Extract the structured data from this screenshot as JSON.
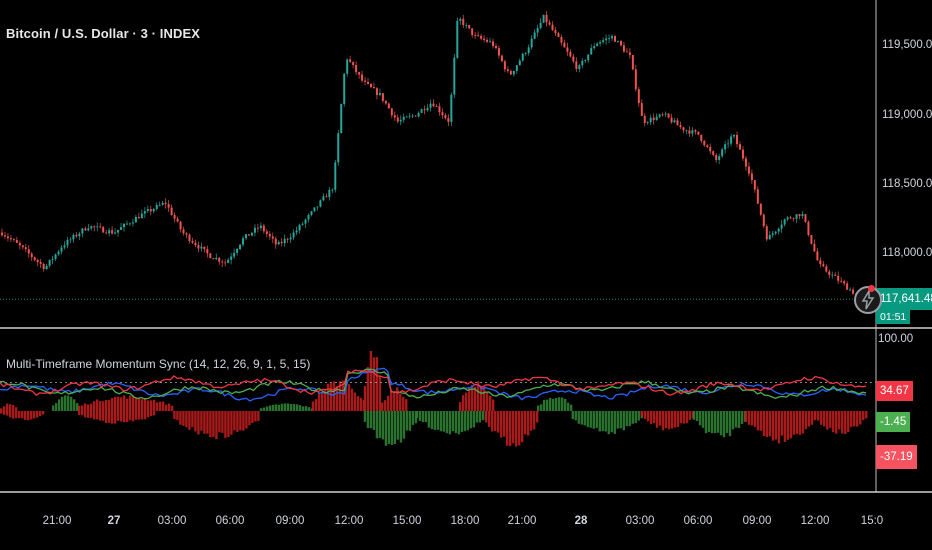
{
  "header": {
    "symbol_title": "Bitcoin / U.S. Dollar · 3 · INDEX",
    "indicator_title": "Multi-Timeframe Momentum Sync (14, 12, 26, 9, 1, 5, 15)"
  },
  "colors": {
    "background": "#000000",
    "up_candle": "#26a69a",
    "down_candle": "#ef5350",
    "rsi_blue": "#2962ff",
    "rsi_green": "#4caf50",
    "rsi_red": "#f23645",
    "hist_green": "#2e7d32",
    "hist_red": "#b71c1c",
    "hist_blue": "#1e3a8a",
    "last_price_tag": "#089981"
  },
  "price_axis": {
    "labels": [
      "119,500.00",
      "119,000.00",
      "118,500.00",
      "118,000.00"
    ],
    "last_price": "117,641.48",
    "countdown": "01:51"
  },
  "indicator_axis": {
    "top_label": "100.00",
    "tags": [
      {
        "text": "34.67",
        "color": "#f23645"
      },
      {
        "text": "-1.45",
        "color": "#4caf50"
      },
      {
        "text": "-37.19",
        "color": "#f7525f"
      }
    ]
  },
  "x_axis": {
    "labels": [
      "21:00",
      "27",
      "03:00",
      "06:00",
      "09:00",
      "12:00",
      "15:00",
      "18:00",
      "21:00",
      "28",
      "03:00",
      "06:00",
      "09:00",
      "12:00",
      "15:0"
    ]
  },
  "chart_data": [
    {
      "type": "candlestick",
      "title": "Bitcoin / U.S. Dollar · 3 · INDEX",
      "ylim": [
        117650,
        119900
      ],
      "y_ticks": [
        118000,
        118500,
        119000,
        119500
      ],
      "close_path": [
        {
          "t": 0.0,
          "v": 118150
        },
        {
          "t": 0.02,
          "v": 118050
        },
        {
          "t": 0.05,
          "v": 117880
        },
        {
          "t": 0.07,
          "v": 118050
        },
        {
          "t": 0.1,
          "v": 118200
        },
        {
          "t": 0.13,
          "v": 118150
        },
        {
          "t": 0.16,
          "v": 118280
        },
        {
          "t": 0.19,
          "v": 118380
        },
        {
          "t": 0.21,
          "v": 118150
        },
        {
          "t": 0.24,
          "v": 117980
        },
        {
          "t": 0.26,
          "v": 117920
        },
        {
          "t": 0.28,
          "v": 118100
        },
        {
          "t": 0.3,
          "v": 118200
        },
        {
          "t": 0.32,
          "v": 118050
        },
        {
          "t": 0.34,
          "v": 118150
        },
        {
          "t": 0.36,
          "v": 118300
        },
        {
          "t": 0.385,
          "v": 118500
        },
        {
          "t": 0.4,
          "v": 119500
        },
        {
          "t": 0.42,
          "v": 119300
        },
        {
          "t": 0.44,
          "v": 119200
        },
        {
          "t": 0.46,
          "v": 119000
        },
        {
          "t": 0.48,
          "v": 119050
        },
        {
          "t": 0.5,
          "v": 119150
        },
        {
          "t": 0.52,
          "v": 119000
        },
        {
          "t": 0.53,
          "v": 119800
        },
        {
          "t": 0.55,
          "v": 119650
        },
        {
          "t": 0.57,
          "v": 119600
        },
        {
          "t": 0.59,
          "v": 119350
        },
        {
          "t": 0.61,
          "v": 119550
        },
        {
          "t": 0.63,
          "v": 119800
        },
        {
          "t": 0.65,
          "v": 119600
        },
        {
          "t": 0.67,
          "v": 119400
        },
        {
          "t": 0.69,
          "v": 119600
        },
        {
          "t": 0.71,
          "v": 119650
        },
        {
          "t": 0.73,
          "v": 119500
        },
        {
          "t": 0.745,
          "v": 119000
        },
        {
          "t": 0.77,
          "v": 119050
        },
        {
          "t": 0.79,
          "v": 118950
        },
        {
          "t": 0.81,
          "v": 118900
        },
        {
          "t": 0.83,
          "v": 118700
        },
        {
          "t": 0.85,
          "v": 118900
        },
        {
          "t": 0.87,
          "v": 118600
        },
        {
          "t": 0.89,
          "v": 118100
        },
        {
          "t": 0.91,
          "v": 118250
        },
        {
          "t": 0.93,
          "v": 118300
        },
        {
          "t": 0.95,
          "v": 117900
        },
        {
          "t": 0.97,
          "v": 117800
        },
        {
          "t": 1.0,
          "v": 117641
        }
      ]
    },
    {
      "type": "line",
      "title": "Multi-Timeframe Momentum Sync (14, 12, 26, 9, 1, 5, 15)",
      "ylim": [
        -100,
        100
      ],
      "series": [
        {
          "color": "#2962ff",
          "base": 28
        },
        {
          "color": "#4caf50",
          "base": 32
        },
        {
          "color": "#f23645",
          "base": 40
        }
      ],
      "histogram_blocks": [
        {
          "t0": 0.0,
          "t1": 0.02,
          "v": 10,
          "color": "#b71c1c"
        },
        {
          "t0": 0.0,
          "t1": 0.05,
          "v": -12,
          "color": "#b71c1c"
        },
        {
          "t0": 0.06,
          "t1": 0.09,
          "v": 22,
          "color": "#2e7d32"
        },
        {
          "t0": 0.09,
          "t1": 0.2,
          "v": 20,
          "color": "#b71c1c"
        },
        {
          "t0": 0.09,
          "t1": 0.18,
          "v": -16,
          "color": "#b71c1c"
        },
        {
          "t0": 0.2,
          "t1": 0.3,
          "v": -35,
          "color": "#b71c1c"
        },
        {
          "t0": 0.3,
          "t1": 0.36,
          "v": 10,
          "color": "#2e7d32"
        },
        {
          "t0": 0.36,
          "t1": 0.42,
          "v": 40,
          "color": "#b71c1c"
        },
        {
          "t0": 0.42,
          "t1": 0.44,
          "v": 88,
          "color": "#b71c1c"
        },
        {
          "t0": 0.44,
          "t1": 0.47,
          "v": 30,
          "color": "#b71c1c"
        },
        {
          "t0": 0.42,
          "t1": 0.48,
          "v": -45,
          "color": "#2e7d32"
        },
        {
          "t0": 0.48,
          "t1": 0.56,
          "v": -30,
          "color": "#2e7d32"
        },
        {
          "t0": 0.53,
          "t1": 0.57,
          "v": 40,
          "color": "#b71c1c"
        },
        {
          "t0": 0.56,
          "t1": 0.62,
          "v": -45,
          "color": "#b71c1c"
        },
        {
          "t0": 0.62,
          "t1": 0.66,
          "v": 20,
          "color": "#2e7d32"
        },
        {
          "t0": 0.66,
          "t1": 0.74,
          "v": -30,
          "color": "#2e7d32"
        },
        {
          "t0": 0.74,
          "t1": 0.8,
          "v": -25,
          "color": "#b71c1c"
        },
        {
          "t0": 0.8,
          "t1": 0.86,
          "v": -35,
          "color": "#2e7d32"
        },
        {
          "t0": 0.86,
          "t1": 0.94,
          "v": -40,
          "color": "#b71c1c"
        },
        {
          "t0": 0.94,
          "t1": 1.0,
          "v": -30,
          "color": "#b71c1c"
        }
      ],
      "last_values": [
        34.67,
        -1.45,
        -37.19
      ]
    }
  ]
}
